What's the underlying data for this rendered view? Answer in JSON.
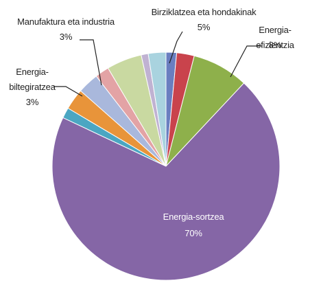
{
  "chart_data": {
    "type": "pie",
    "categories": [
      null,
      null,
      "Energia-efizientzia",
      "Energia-sortzea",
      null,
      "Energia-\nbiltegiratzea",
      "Manufaktura eta industria",
      null,
      "Birziklatzea eta hondakinak",
      null,
      null
    ],
    "values": [
      1.5,
      2.5,
      8,
      70,
      1.5,
      3,
      3,
      2,
      5,
      1,
      2.5
    ],
    "value_labels": [
      null,
      null,
      "8%",
      "70%",
      null,
      "3%",
      "3%",
      null,
      "5%",
      null,
      null
    ],
    "colors": [
      "#6a7ec0",
      "#c9434c",
      "#8eb04b",
      "#8566a6",
      "#4ba6c2",
      "#e8943a",
      "#a9b8dc",
      "#e3a3a5",
      "#c9d9a1",
      "#c0b2d2",
      "#a9d3df"
    ]
  }
}
